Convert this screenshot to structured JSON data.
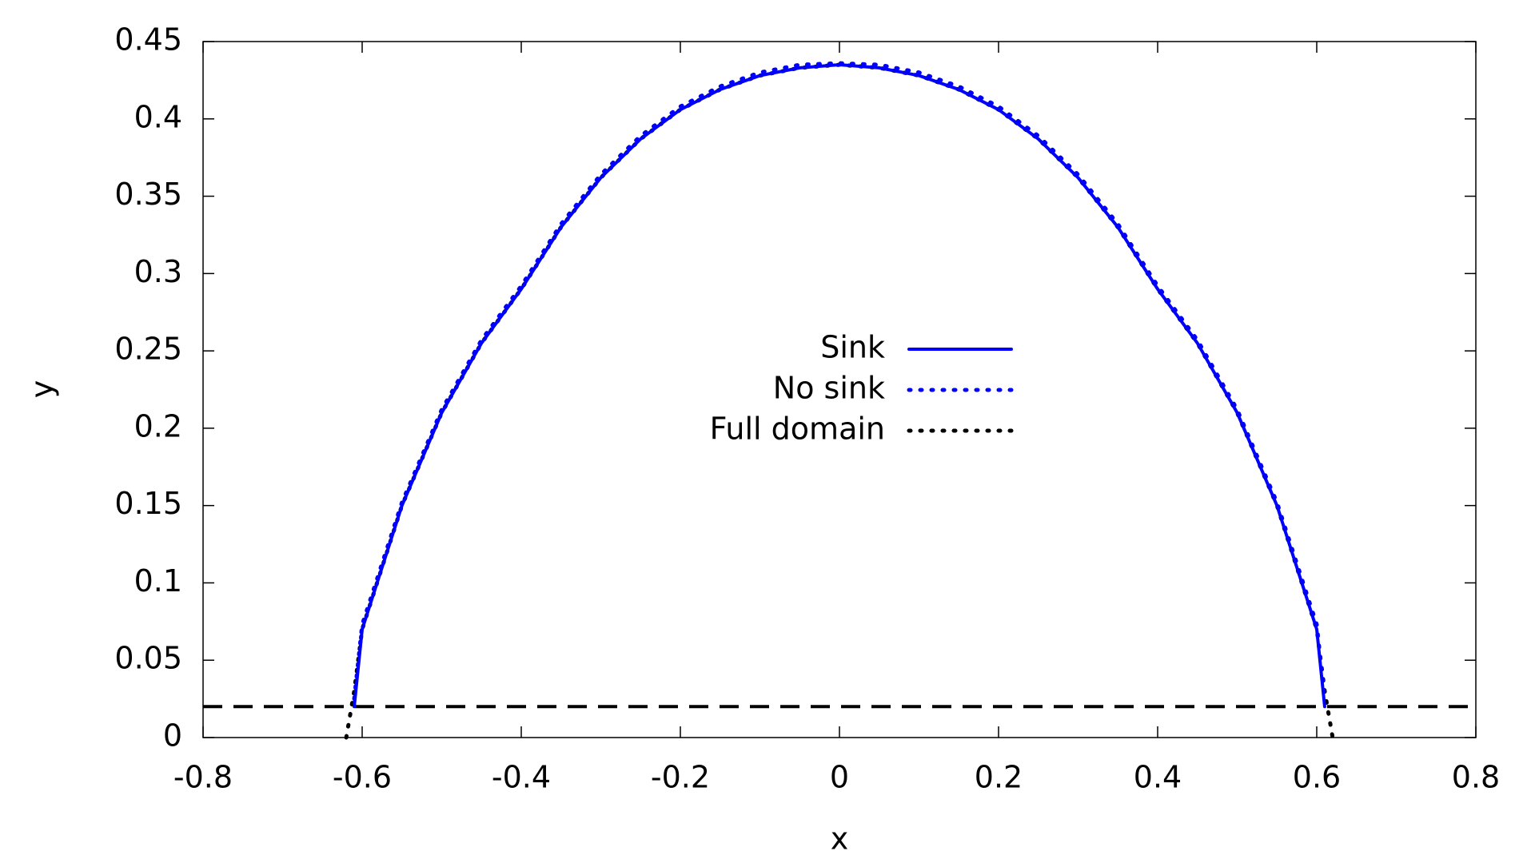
{
  "chart_data": {
    "type": "line",
    "xlabel": "x",
    "ylabel": "y",
    "x": [
      -0.62,
      -0.61,
      -0.6,
      -0.55,
      -0.5,
      -0.45,
      -0.4,
      -0.35,
      -0.3,
      -0.25,
      -0.2,
      -0.15,
      -0.1,
      -0.05,
      0,
      0.05,
      0.1,
      0.15,
      0.2,
      0.25,
      0.3,
      0.35,
      0.4,
      0.45,
      0.5,
      0.55,
      0.6,
      0.61,
      0.62
    ],
    "series": [
      {
        "name": "Sink",
        "color": "#0000ff",
        "style": "solid",
        "values": [
          null,
          0.02,
          0.07,
          0.15,
          0.21,
          0.255,
          0.29,
          0.33,
          0.362,
          0.387,
          0.406,
          0.419,
          0.428,
          0.433,
          0.435,
          0.433,
          0.428,
          0.419,
          0.406,
          0.387,
          0.362,
          0.33,
          0.29,
          0.255,
          0.21,
          0.15,
          0.07,
          0.02,
          null
        ]
      },
      {
        "name": "No sink",
        "color": "#0000ff",
        "style": "dotted",
        "values": [
          null,
          0.025,
          0.073,
          0.152,
          0.212,
          0.257,
          0.292,
          0.332,
          0.364,
          0.389,
          0.408,
          0.421,
          0.43,
          0.435,
          0.436,
          0.435,
          0.43,
          0.421,
          0.408,
          0.389,
          0.364,
          0.332,
          0.292,
          0.257,
          0.212,
          0.152,
          0.073,
          0.025,
          null
        ]
      },
      {
        "name": "Full domain",
        "color": "#000000",
        "style": "dotted",
        "values": [
          0,
          0.03,
          0.07,
          0.15,
          0.21,
          0.255,
          0.29,
          0.33,
          0.362,
          0.387,
          0.406,
          0.419,
          0.428,
          0.433,
          0.435,
          0.433,
          0.428,
          0.419,
          0.406,
          0.387,
          0.362,
          0.33,
          0.29,
          0.255,
          0.21,
          0.15,
          0.07,
          0.03,
          0
        ]
      }
    ],
    "hlines": [
      {
        "value": 0.02,
        "color": "#000000",
        "style": "dashed"
      }
    ],
    "xlim": [
      -0.8,
      0.8
    ],
    "xticks": [
      -0.8,
      -0.6,
      -0.4,
      -0.2,
      0,
      0.2,
      0.4,
      0.6,
      0.8
    ],
    "ylim": [
      0,
      0.45
    ],
    "yticks": [
      0,
      0.05,
      0.1,
      0.15,
      0.2,
      0.25,
      0.3,
      0.35,
      0.4,
      0.45
    ],
    "grid": false,
    "legend": "center"
  }
}
